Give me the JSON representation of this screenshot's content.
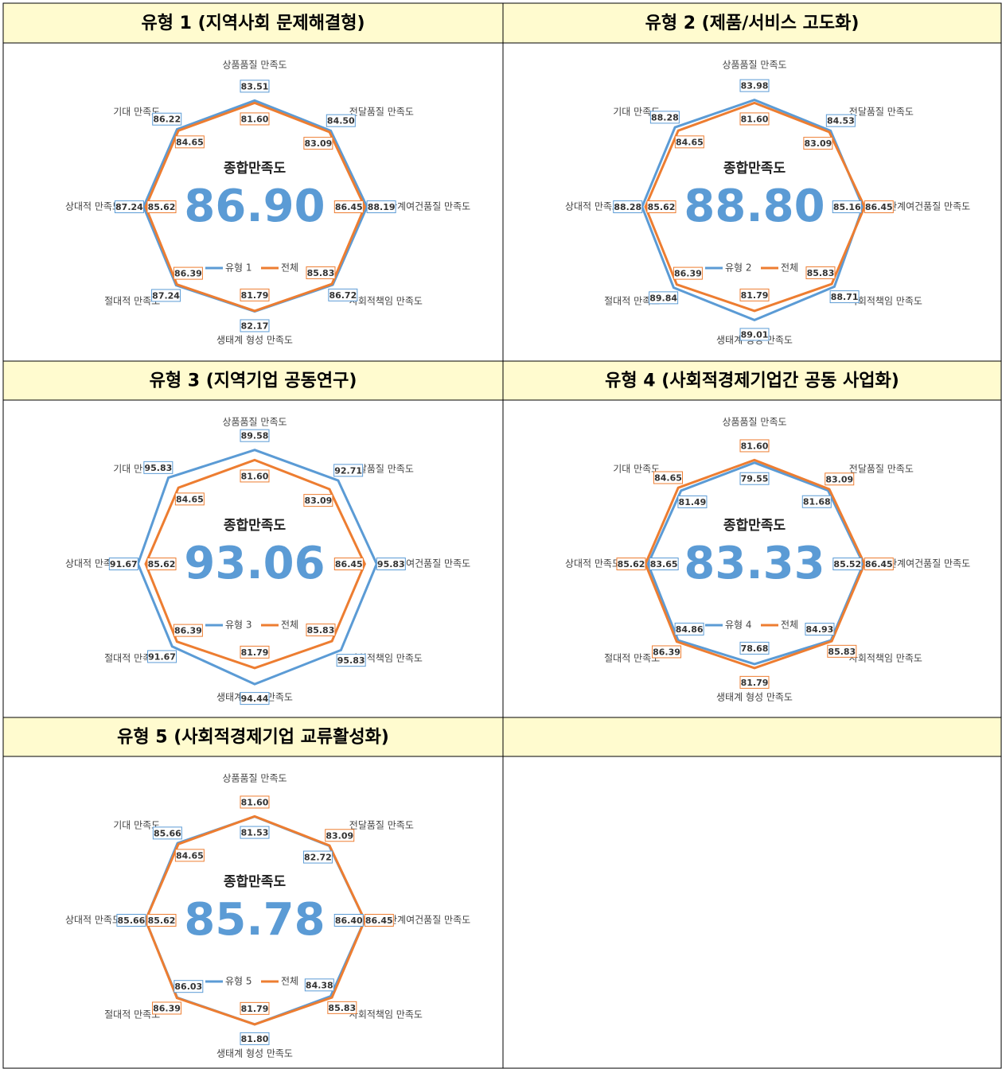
{
  "chart_data": [
    {
      "type": "radar",
      "title": "유형 1 (지역사회 문제해결형)",
      "center_label": "종합만족도",
      "overall_value": 86.9,
      "overall_label": "86.90",
      "categories": [
        "상품품질 만족도",
        "전달품질 만족도",
        "관계여건품질 만족도",
        "사회적책임 만족도",
        "생태계 형성 만족도",
        "절대적 만족도",
        "상대적 만족도",
        "기대 만족도"
      ],
      "ylim": [
        0,
        100
      ],
      "series": [
        {
          "name": "유형 1",
          "color": "#5b9bd5",
          "values": [
            83.51,
            84.5,
            88.19,
            86.72,
            82.17,
            87.24,
            87.24,
            86.22
          ],
          "value_labels": [
            "83.51",
            "84.50",
            "88.19",
            "86.72",
            "82.17",
            "87.24",
            "87.24",
            "86.22"
          ]
        },
        {
          "name": "전체",
          "color": "#ed7d31",
          "values": [
            81.6,
            83.09,
            86.45,
            85.83,
            81.79,
            86.39,
            85.62,
            84.65
          ],
          "value_labels": [
            "81.60",
            "83.09",
            "86.45",
            "85.83",
            "81.79",
            "86.39",
            "85.62",
            "84.65"
          ]
        }
      ]
    },
    {
      "type": "radar",
      "title": "유형 2 (제품/서비스 고도화)",
      "center_label": "종합만족도",
      "overall_value": 88.8,
      "overall_label": "88.80",
      "categories": [
        "상품품질 만족도",
        "전달품질 만족도",
        "관계여건품질 만족도",
        "사회적책임 만족도",
        "생태계 형성 만족도",
        "절대적 만족도",
        "상대적 만족도",
        "기대 만족도"
      ],
      "ylim": [
        0,
        100
      ],
      "series": [
        {
          "name": "유형 2",
          "color": "#5b9bd5",
          "values": [
            83.98,
            84.53,
            85.16,
            88.71,
            89.01,
            89.84,
            88.28,
            88.28
          ],
          "value_labels": [
            "83.98",
            "84.53",
            "85.16",
            "88.71",
            "89.01",
            "89.84",
            "88.28",
            "88.28"
          ]
        },
        {
          "name": "전체",
          "color": "#ed7d31",
          "values": [
            81.6,
            83.09,
            86.45,
            85.83,
            81.79,
            86.39,
            85.62,
            84.65
          ],
          "value_labels": [
            "81.60",
            "83.09",
            "86.45",
            "85.83",
            "81.79",
            "86.39",
            "85.62",
            "84.65"
          ]
        }
      ]
    },
    {
      "type": "radar",
      "title": "유형 3 (지역기업 공동연구)",
      "center_label": "종합만족도",
      "overall_value": 93.06,
      "overall_label": "93.06",
      "categories": [
        "상품품질 만족도",
        "전달품질 만족도",
        "관계여건품질 만족도",
        "사회적책임 만족도",
        "생태계 형성 만족도",
        "절대적 만족도",
        "상대적 만족도",
        "기대 만족도"
      ],
      "ylim": [
        0,
        100
      ],
      "series": [
        {
          "name": "유형 3",
          "color": "#5b9bd5",
          "values": [
            89.58,
            92.71,
            95.83,
            95.83,
            94.44,
            91.67,
            91.67,
            95.83
          ],
          "value_labels": [
            "89.58",
            "92.71",
            "95.83",
            "95.83",
            "94.44",
            "91.67",
            "91.67",
            "95.83"
          ]
        },
        {
          "name": "전체",
          "color": "#ed7d31",
          "values": [
            81.6,
            83.09,
            86.45,
            85.83,
            81.79,
            86.39,
            85.62,
            84.65
          ],
          "value_labels": [
            "81.60",
            "83.09",
            "86.45",
            "85.83",
            "81.79",
            "86.39",
            "85.62",
            "84.65"
          ]
        }
      ]
    },
    {
      "type": "radar",
      "title": "유형 4 (사회적경제기업간 공동 사업화)",
      "center_label": "종합만족도",
      "overall_value": 83.33,
      "overall_label": "83.33",
      "categories": [
        "상품품질 만족도",
        "전달품질 만족도",
        "관계여건품질 만족도",
        "사회적책임 만족도",
        "생태계 형성 만족도",
        "절대적 만족도",
        "상대적 만족도",
        "기대 만족도"
      ],
      "ylim": [
        0,
        100
      ],
      "series": [
        {
          "name": "유형 4",
          "color": "#5b9bd5",
          "values": [
            79.55,
            81.68,
            85.52,
            84.93,
            78.68,
            84.86,
            83.65,
            81.49
          ],
          "value_labels": [
            "79.55",
            "81.68",
            "85.52",
            "84.93",
            "78.68",
            "84.86",
            "83.65",
            "81.49"
          ]
        },
        {
          "name": "전체",
          "color": "#ed7d31",
          "values": [
            81.6,
            83.09,
            86.45,
            85.83,
            81.79,
            86.39,
            85.62,
            84.65
          ],
          "value_labels": [
            "81.60",
            "83.09",
            "86.45",
            "85.83",
            "81.79",
            "86.39",
            "85.62",
            "84.65"
          ]
        }
      ]
    },
    {
      "type": "radar",
      "title": "유형 5 (사회적경제기업 교류활성화)",
      "center_label": "종합만족도",
      "overall_value": 85.78,
      "overall_label": "85.78",
      "categories": [
        "상품품질 만족도",
        "전달품질 만족도",
        "관계여건품질 만족도",
        "사회적책임 만족도",
        "생태계 형성 만족도",
        "절대적 만족도",
        "상대적 만족도",
        "기대 만족도"
      ],
      "ylim": [
        0,
        100
      ],
      "series": [
        {
          "name": "유형 5",
          "color": "#5b9bd5",
          "values": [
            81.53,
            82.72,
            86.4,
            84.38,
            81.8,
            86.03,
            85.66,
            85.66
          ],
          "value_labels": [
            "81.53",
            "82.72",
            "86.40",
            "84.38",
            "81.80",
            "86.03",
            "85.66",
            "85.66"
          ]
        },
        {
          "name": "전체",
          "color": "#ed7d31",
          "values": [
            81.6,
            83.09,
            86.45,
            85.83,
            81.79,
            86.39,
            85.62,
            84.65
          ],
          "value_labels": [
            "81.60",
            "83.09",
            "86.45",
            "85.83",
            "81.79",
            "86.39",
            "85.62",
            "84.65"
          ]
        }
      ]
    }
  ]
}
